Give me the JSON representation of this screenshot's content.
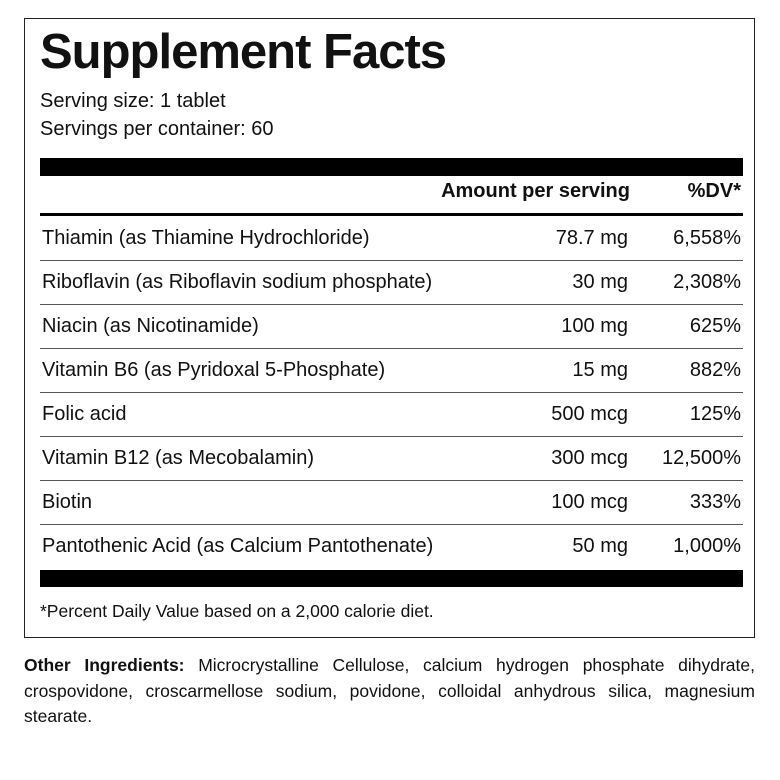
{
  "header": {
    "title": "Supplement Facts",
    "serving_size": "Serving size: 1 tablet",
    "servings_per_container": "Servings per container: 60"
  },
  "table": {
    "columns": [
      "Amount per serving",
      "%DV*"
    ],
    "rows": [
      [
        "Thiamin (as Thiamine Hydrochloride)",
        "78.7 mg",
        "6,558%"
      ],
      [
        "Riboflavin (as Riboflavin sodium phosphate)",
        "30 mg",
        "2,308%"
      ],
      [
        "Niacin (as Nicotinamide)",
        "100 mg",
        "625%"
      ],
      [
        "Vitamin B6 (as Pyridoxal 5-Phosphate)",
        "15 mg",
        "882%"
      ],
      [
        "Folic acid",
        "500 mcg",
        "125%"
      ],
      [
        "Vitamin B12 (as Mecobalamin)",
        "300 mcg",
        "12,500%"
      ],
      [
        "Biotin",
        "100 mcg",
        "333%"
      ],
      [
        "Pantothenic Acid (as Calcium Pantothenate)",
        "50 mg",
        "1,000%"
      ]
    ]
  },
  "footnote": "*Percent Daily Value based on a 2,000 calorie diet.",
  "other_ingredients": {
    "label": "Other Ingredients:",
    "text": "Microcrystalline Cellulose, calcium hydrogen phosphate dihydrate, crospovidone, croscarmellose sodium, povidone, colloidal anhydrous silica, magnesium stearate."
  }
}
